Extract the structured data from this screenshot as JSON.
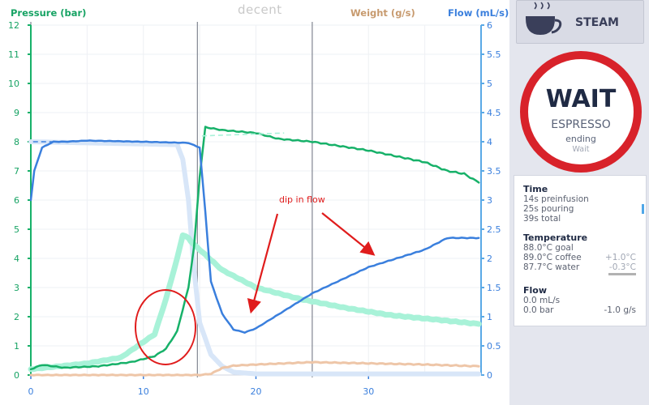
{
  "chart": {
    "pressure_label": "Pressure (bar)",
    "weight_label": "Weight (g/s)",
    "flow_label": "Flow (mL/s)",
    "logo": "decent",
    "annotation": "dip in flow",
    "left_ticks": [
      "0",
      "1",
      "2",
      "3",
      "4",
      "5",
      "6",
      "7",
      "8",
      "9",
      "10",
      "11",
      "12"
    ],
    "right_ticks": [
      "0",
      "0.5",
      "1",
      "1.5",
      "2",
      "2.5",
      "3",
      "3.5",
      "4",
      "4.5",
      "5",
      "5.5",
      "6"
    ],
    "x_ticks": [
      "0",
      "10",
      "20",
      "30"
    ],
    "colors": {
      "pressure": "#17b169",
      "pressure_goal": "#a8f2d8",
      "flow": "#3a7fdd",
      "flow_goal": "#d8e6f8",
      "weight": "#eec6a8",
      "annotation": "#e01c1c"
    }
  },
  "chart_data": {
    "type": "line",
    "xlabel": "",
    "xlim": [
      0,
      40
    ],
    "y_left": {
      "label": "Pressure (bar)",
      "lim": [
        0,
        12
      ]
    },
    "y_right": {
      "label": "Flow (mL/s) / Weight (g/s)",
      "lim": [
        0,
        6
      ]
    },
    "markers_x": [
      0,
      14.8,
      25
    ],
    "series": [
      {
        "name": "Pressure (bar)",
        "axis": "left",
        "x": [
          0,
          1,
          3,
          6,
          9,
          11,
          12,
          13,
          14,
          14.5,
          15,
          15.5,
          17,
          20,
          22,
          25,
          30,
          35,
          37,
          38.5,
          39.8
        ],
        "y": [
          0.2,
          0.35,
          0.25,
          0.3,
          0.45,
          0.65,
          0.9,
          1.5,
          3,
          4.4,
          6.8,
          8.5,
          8.4,
          8.3,
          8.1,
          8.0,
          7.7,
          7.3,
          7.0,
          6.9,
          6.6
        ]
      },
      {
        "axis": "left",
        "x": [
          0,
          5,
          8,
          11,
          12,
          13,
          13.5,
          14,
          14.4,
          15,
          17,
          20,
          24,
          28,
          32,
          36,
          39.8
        ],
        "y": [
          0.2,
          0.4,
          0.6,
          1.4,
          2.6,
          4.0,
          4.8,
          4.7,
          4.5,
          4.3,
          3.6,
          3.0,
          2.6,
          2.3,
          2.05,
          1.9,
          1.75
        ]
      },
      {
        "name": "Flow (mL/s)",
        "axis": "right",
        "x": [
          0,
          0.3,
          1,
          2,
          3,
          5,
          10,
          14,
          15,
          15.5,
          16,
          17,
          18,
          19,
          20,
          25,
          30,
          35,
          37,
          39.8
        ],
        "y": [
          3.0,
          3.5,
          3.9,
          4.0,
          4.0,
          4.02,
          4.0,
          3.98,
          3.9,
          2.8,
          1.6,
          1.05,
          0.78,
          0.73,
          0.8,
          1.4,
          1.85,
          2.15,
          2.35,
          2.35
        ]
      },
      {
        "axis": "right",
        "x": [
          0,
          13,
          13.5,
          14,
          14.5,
          15,
          16,
          17,
          18,
          20,
          25,
          39.8
        ],
        "y": [
          4.0,
          3.95,
          3.7,
          3.0,
          1.8,
          0.9,
          0.35,
          0.15,
          0.05,
          0.02,
          0.02,
          0.02
        ]
      },
      {
        "name": "Weight (g/s)",
        "axis": "right",
        "x": [
          0,
          15,
          16,
          17,
          18,
          19,
          20,
          25,
          30,
          35,
          39.8
        ],
        "y": [
          0,
          0,
          0.02,
          0.12,
          0.16,
          0.17,
          0.18,
          0.22,
          0.2,
          0.18,
          0.15
        ]
      }
    ]
  },
  "steam": {
    "label": "STEAM"
  },
  "status": {
    "main": "WAIT",
    "sub": "ESPRESSO",
    "state": "ending",
    "detail": "Wait"
  },
  "info": {
    "time_heading": "Time",
    "preinfusion": "14s preinfusion",
    "pouring": "25s pouring",
    "total": "39s total",
    "temp_heading": "Temperature",
    "goal": "88.0°C goal",
    "coffee": "89.0°C coffee",
    "coffee_delta": "+1.0°C",
    "water": "87.7°C water",
    "water_delta": "-0.3°C",
    "flow_heading": "Flow",
    "flow_rate": "0.0 mL/s",
    "pressure": "0.0 bar",
    "weight_rate": "-1.0 g/s"
  }
}
